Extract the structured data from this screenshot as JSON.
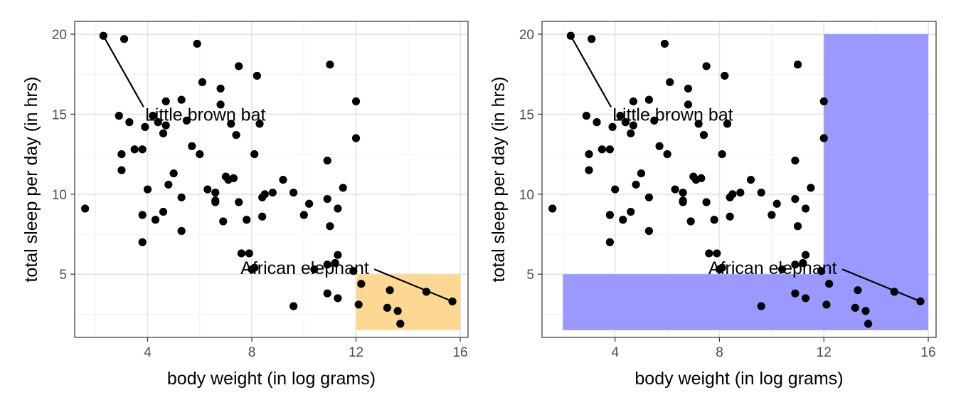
{
  "chart_data": [
    {
      "type": "scatter",
      "panel": "left",
      "xlabel": "body weight (in log grams)",
      "ylabel": "total sleep per day (in hrs)",
      "xlim": [
        1.2,
        16.3
      ],
      "ylim": [
        1.05,
        20.8
      ],
      "xticks": [
        4,
        8,
        12,
        16
      ],
      "yticks": [
        5,
        10,
        15,
        20
      ],
      "grid": true,
      "highlight_rects": [
        {
          "x": [
            12,
            16
          ],
          "y": [
            1.5,
            5
          ],
          "color": "#fdd893"
        }
      ],
      "annotations": [
        {
          "text": "Little brown bat",
          "x": 3.9,
          "y": 15.0,
          "point": [
            2.3,
            19.9
          ]
        },
        {
          "text": "African elephant",
          "x": 5.9,
          "y": 5.4,
          "point": [
            15.7,
            3.3
          ]
        }
      ],
      "points": [
        [
          1.6,
          9.1
        ],
        [
          2.3,
          19.9
        ],
        [
          3.1,
          19.7
        ],
        [
          5.9,
          19.4
        ],
        [
          6.1,
          17.0
        ],
        [
          6.8,
          16.6
        ],
        [
          7.5,
          18.0
        ],
        [
          8.2,
          17.4
        ],
        [
          11.0,
          18.1
        ],
        [
          12.0,
          15.8
        ],
        [
          12.0,
          13.5
        ],
        [
          2.9,
          14.9
        ],
        [
          3.3,
          14.5
        ],
        [
          3.9,
          14.2
        ],
        [
          4.2,
          14.9
        ],
        [
          4.6,
          13.8
        ],
        [
          4.7,
          14.3
        ],
        [
          4.7,
          15.8
        ],
        [
          5.3,
          15.9
        ],
        [
          4.4,
          14.5
        ],
        [
          5.5,
          14.6
        ],
        [
          6.8,
          15.6
        ],
        [
          7.2,
          14.4
        ],
        [
          7.4,
          13.7
        ],
        [
          8.3,
          14.4
        ],
        [
          3.0,
          12.5
        ],
        [
          3.5,
          12.8
        ],
        [
          3.8,
          12.8
        ],
        [
          5.7,
          13.0
        ],
        [
          6.0,
          12.5
        ],
        [
          8.1,
          12.5
        ],
        [
          3.0,
          11.5
        ],
        [
          5.0,
          11.3
        ],
        [
          4.0,
          10.3
        ],
        [
          4.8,
          10.6
        ],
        [
          5.3,
          9.8
        ],
        [
          6.3,
          10.3
        ],
        [
          6.6,
          10.1
        ],
        [
          7.0,
          11.1
        ],
        [
          7.1,
          10.9
        ],
        [
          7.3,
          11.0
        ],
        [
          6.6,
          9.5
        ],
        [
          6.6,
          9.6
        ],
        [
          7.5,
          9.5
        ],
        [
          8.4,
          9.8
        ],
        [
          8.5,
          10.0
        ],
        [
          8.8,
          10.1
        ],
        [
          9.2,
          10.9
        ],
        [
          9.6,
          10.1
        ],
        [
          10.9,
          12.1
        ],
        [
          11.5,
          10.4
        ],
        [
          3.8,
          8.7
        ],
        [
          4.3,
          8.4
        ],
        [
          4.6,
          8.9
        ],
        [
          3.8,
          7.0
        ],
        [
          5.3,
          7.7
        ],
        [
          6.9,
          8.3
        ],
        [
          7.8,
          8.4
        ],
        [
          8.4,
          8.6
        ],
        [
          10.0,
          8.7
        ],
        [
          10.2,
          9.4
        ],
        [
          10.9,
          9.7
        ],
        [
          11.0,
          8.0
        ],
        [
          11.3,
          9.1
        ],
        [
          7.6,
          6.3
        ],
        [
          7.9,
          6.3
        ],
        [
          8.0,
          5.3
        ],
        [
          8.1,
          5.4
        ],
        [
          10.4,
          5.3
        ],
        [
          10.9,
          5.6
        ],
        [
          11.2,
          5.7
        ],
        [
          11.3,
          6.2
        ],
        [
          11.9,
          5.2
        ],
        [
          9.6,
          3.0
        ],
        [
          10.9,
          3.8
        ],
        [
          11.3,
          3.5
        ],
        [
          12.2,
          4.4
        ],
        [
          12.1,
          3.1
        ],
        [
          13.3,
          4.0
        ],
        [
          13.2,
          2.9
        ],
        [
          13.6,
          2.7
        ],
        [
          13.7,
          1.9
        ],
        [
          14.7,
          3.9
        ],
        [
          15.7,
          3.3
        ]
      ]
    },
    {
      "type": "scatter",
      "panel": "right",
      "xlabel": "body weight (in log grams)",
      "ylabel": "total sleep per day (in hrs)",
      "xlim": [
        1.2,
        16.3
      ],
      "ylim": [
        1.05,
        20.8
      ],
      "xticks": [
        4,
        8,
        12,
        16
      ],
      "yticks": [
        5,
        10,
        15,
        20
      ],
      "grid": true,
      "highlight_rects": [
        {
          "x": [
            2,
            16
          ],
          "y": [
            1.5,
            5
          ],
          "color": "#9999ff"
        },
        {
          "x": [
            12,
            16
          ],
          "y": [
            5,
            20
          ],
          "color": "#9999ff"
        }
      ],
      "annotations": [
        {
          "text": "Little brown bat",
          "x": 3.9,
          "y": 15.0,
          "point": [
            2.3,
            19.9
          ]
        },
        {
          "text": "African elephant",
          "x": 5.9,
          "y": 5.4,
          "point": [
            15.7,
            3.3
          ]
        }
      ],
      "points": "same_as_left"
    }
  ]
}
